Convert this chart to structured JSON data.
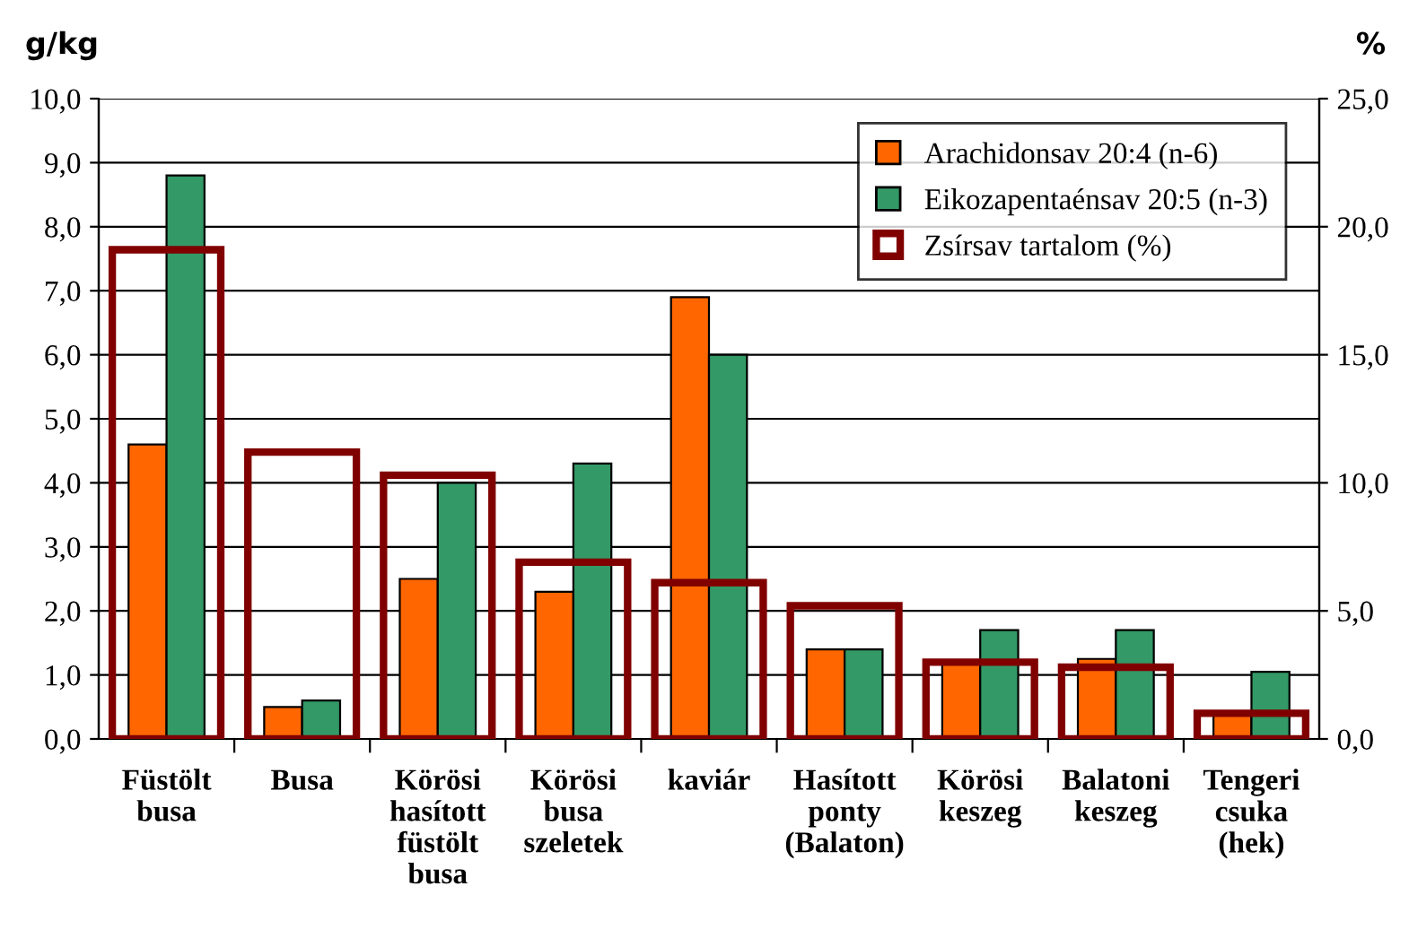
{
  "chart_data": {
    "type": "bar",
    "categories": [
      "Füstölt\nbusa",
      "Busa",
      "Körösi\nhasított\nfüstölt\nbusa",
      "Körösi\nbusa\nszeletek",
      "kaviár",
      "Hasított\nponty\n(Balaton)",
      "Körösi\nkeszeg",
      "Balatoni\nkeszeg",
      "Tengeri\ncsuka\n(hek)"
    ],
    "ylabel": "g/kg",
    "y2label": "%",
    "series": [
      {
        "name": "Arachidonsav 20:4 (n-6)",
        "color": "#ff6600",
        "values": [
          4.6,
          0.5,
          2.5,
          2.3,
          6.9,
          1.4,
          1.2,
          1.25,
          0.4
        ]
      },
      {
        "name": "Eikozapentaénsav 20:5 (n-3)",
        "color": "#339966",
        "values": [
          8.8,
          0.6,
          4.0,
          4.3,
          6.0,
          1.4,
          1.7,
          1.7,
          1.05
        ]
      },
      {
        "name": "Zsírsav tartalom (%)",
        "color": "#800000",
        "axis": "y2",
        "values": [
          19.1,
          11.2,
          10.3,
          6.9,
          6.1,
          5.2,
          3.0,
          2.8,
          1.0
        ]
      }
    ],
    "ylim": [
      0,
      10
    ],
    "yticks": [
      {
        "value": 0,
        "label": "0,0"
      },
      {
        "value": 1,
        "label": "1,0"
      },
      {
        "value": 2,
        "label": "2,0"
      },
      {
        "value": 3,
        "label": "3,0"
      },
      {
        "value": 4,
        "label": "4,0"
      },
      {
        "value": 5,
        "label": "5,0"
      },
      {
        "value": 6,
        "label": "6,0"
      },
      {
        "value": 7,
        "label": "7,0"
      },
      {
        "value": 8,
        "label": "8,0"
      },
      {
        "value": 9,
        "label": "9,0"
      },
      {
        "value": 10,
        "label": "10,0"
      }
    ],
    "y2lim": [
      0,
      25
    ],
    "y2ticks": [
      {
        "value": 0,
        "label": "0,0"
      },
      {
        "value": 5,
        "label": "5,0"
      },
      {
        "value": 10,
        "label": "10,0"
      },
      {
        "value": 15,
        "label": "15,0"
      },
      {
        "value": 20,
        "label": "20,0"
      },
      {
        "value": 25,
        "label": "25,0"
      }
    ],
    "grid": "y",
    "legend": "top right"
  }
}
